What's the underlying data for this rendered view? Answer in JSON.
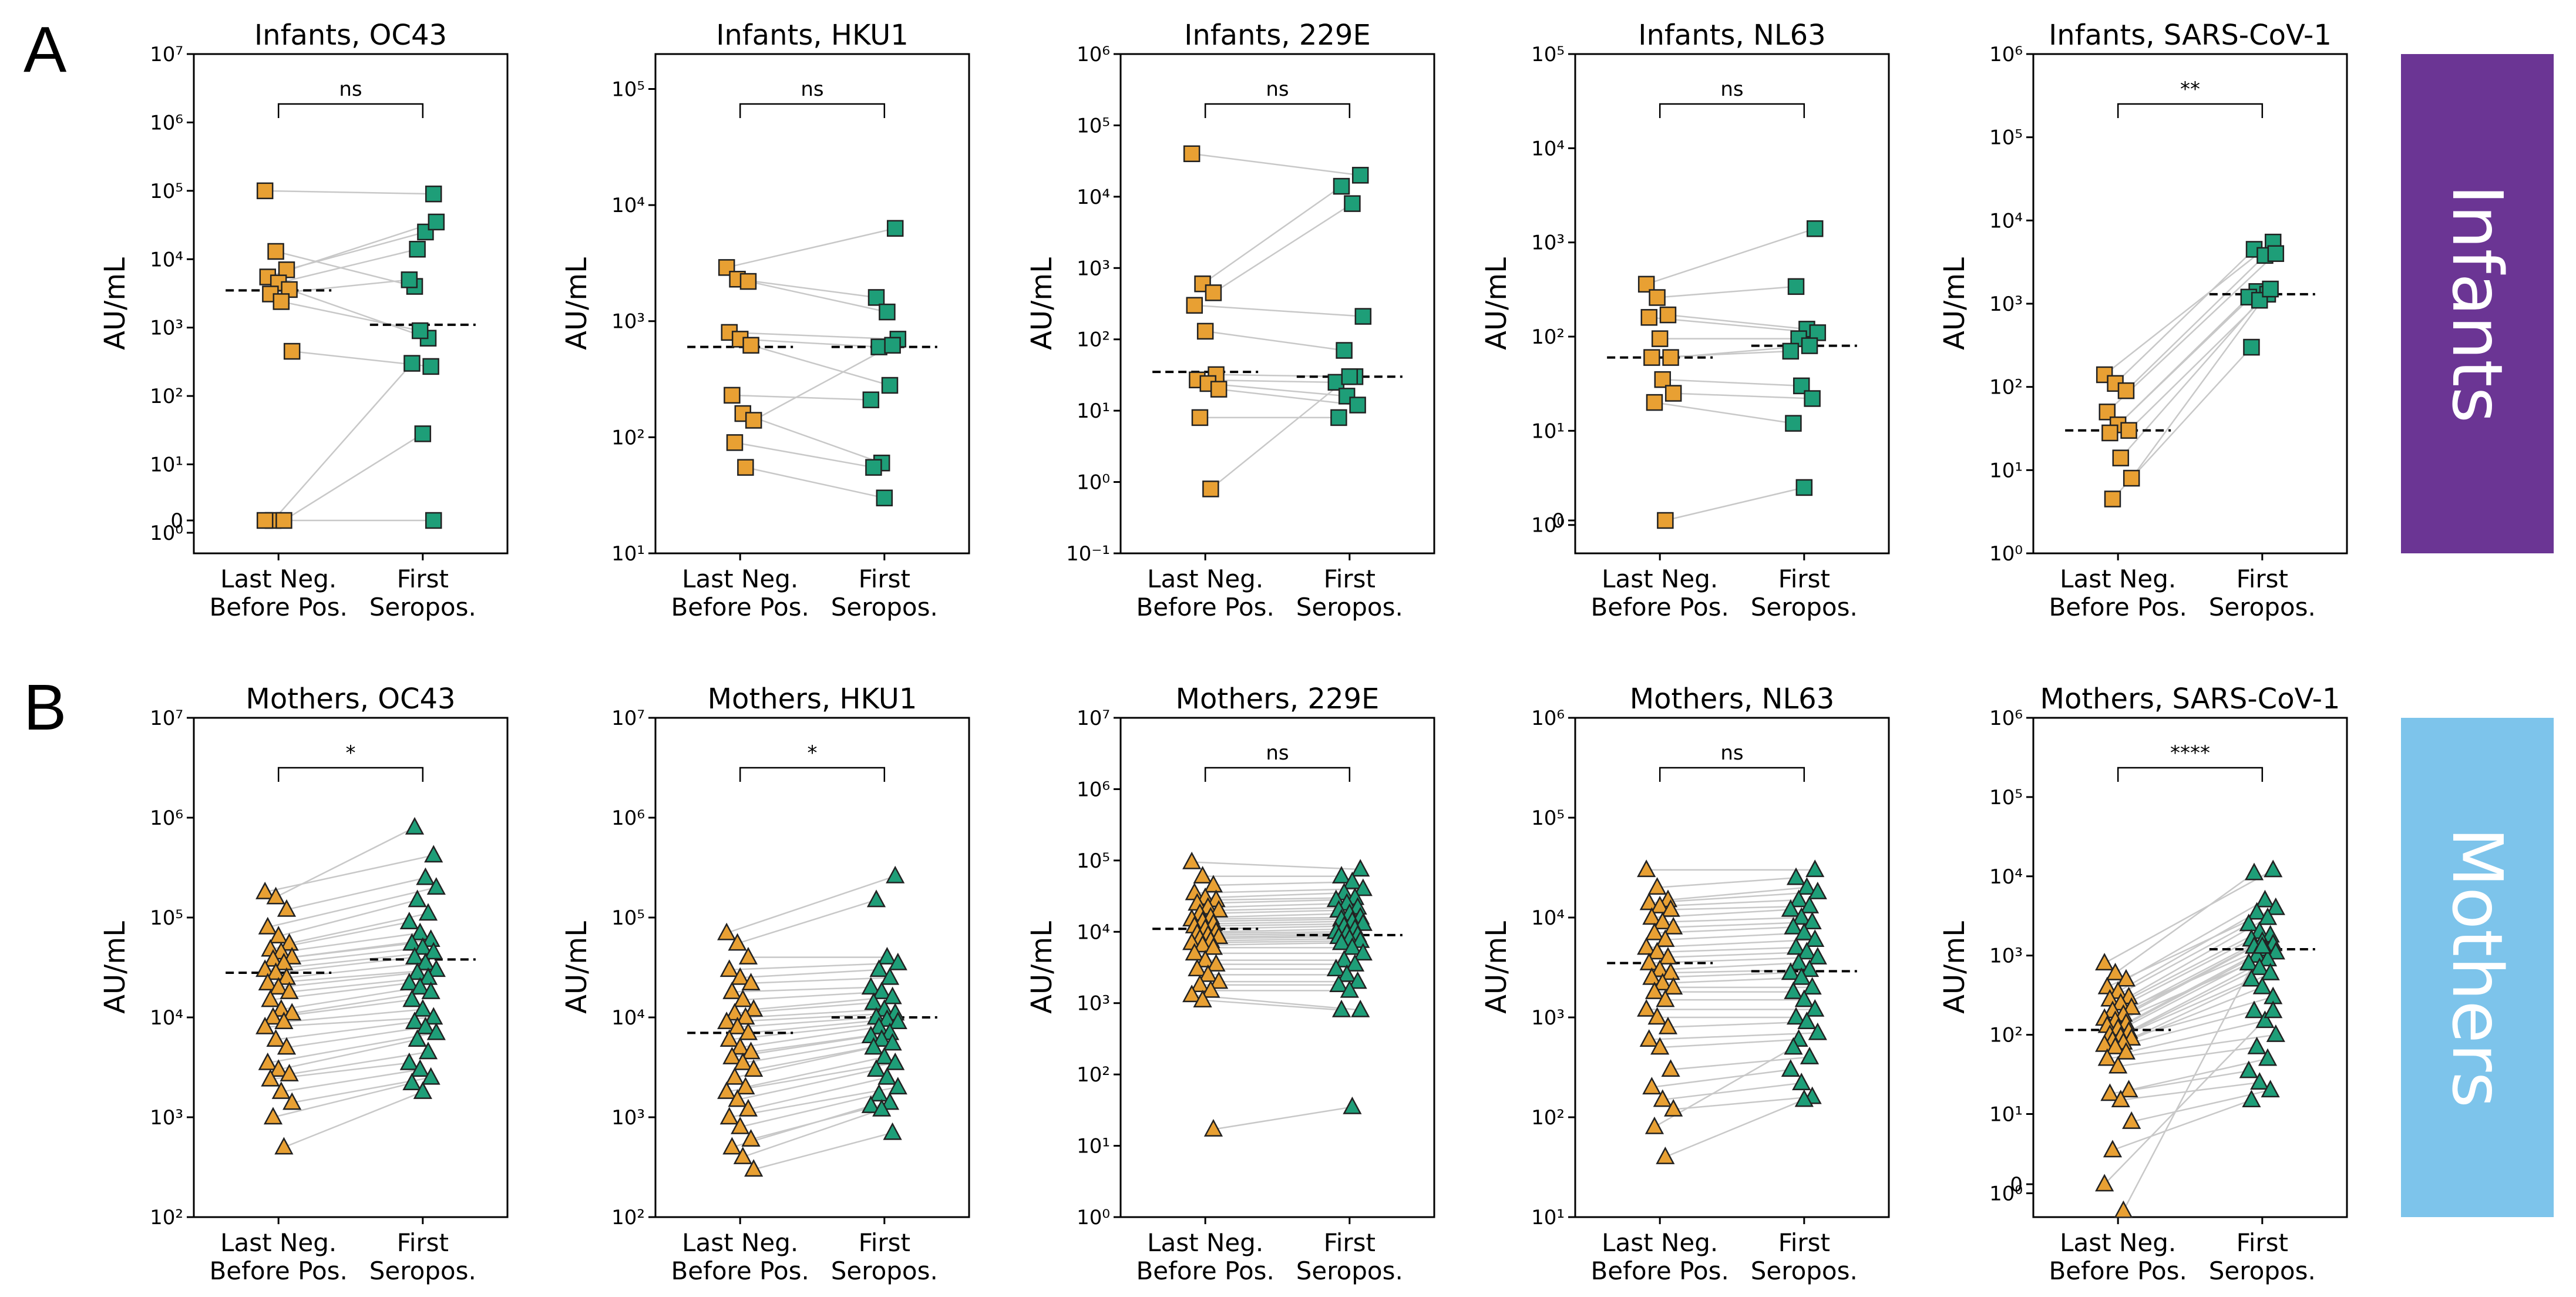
{
  "figure": {
    "panel_labels": [
      "A",
      "B"
    ],
    "row_labels": [
      "Infants",
      "Mothers"
    ],
    "colors": {
      "last_neg": "#E8A033",
      "first_pos": "#1E9E78",
      "infants_band": "#6B3594",
      "mothers_band": "#7DC4EB",
      "pair_line": "#C8C8C8",
      "median": "#000000"
    }
  },
  "chart_data": [
    {
      "type": "scatter",
      "title": "Infants, OC43",
      "ylabel": "AU/mL",
      "row": 0,
      "col": 0,
      "marker": "square",
      "yscale": "log",
      "ylim": [
        0.5,
        10000000
      ],
      "ytick_exps": [
        0,
        1,
        2,
        3,
        4,
        5,
        6,
        7
      ],
      "has_zero": true,
      "categories": [
        "Last Neg.\nBefore Pos.",
        "First\nSeropos."
      ],
      "significance": "ns",
      "medians": [
        3500,
        1100
      ],
      "pairs": [
        [
          100000,
          90000
        ],
        [
          13000,
          4000
        ],
        [
          7000,
          25000
        ],
        [
          5500,
          35000
        ],
        [
          4500,
          14000
        ],
        [
          3600,
          700
        ],
        [
          3100,
          5000
        ],
        [
          2400,
          900
        ],
        [
          450,
          270
        ],
        [
          0,
          300
        ],
        [
          0,
          28
        ],
        [
          0,
          0
        ]
      ]
    },
    {
      "type": "scatter",
      "title": "Infants, HKU1",
      "ylabel": "AU/mL",
      "row": 0,
      "col": 1,
      "marker": "square",
      "yscale": "log",
      "ylim": [
        10,
        200000
      ],
      "ytick_exps": [
        1,
        2,
        3,
        4,
        5
      ],
      "has_zero": false,
      "categories": [
        "Last Neg.\nBefore Pos.",
        "First\nSeropos."
      ],
      "significance": "ns",
      "medians": [
        600,
        600
      ],
      "pairs": [
        [
          2900,
          6300
        ],
        [
          2300,
          1600
        ],
        [
          2200,
          1200
        ],
        [
          800,
          700
        ],
        [
          700,
          600
        ],
        [
          620,
          280
        ],
        [
          230,
          210
        ],
        [
          160,
          60
        ],
        [
          140,
          620
        ],
        [
          90,
          55
        ],
        [
          55,
          30
        ]
      ]
    },
    {
      "type": "scatter",
      "title": "Infants, 229E",
      "ylabel": "AU/mL",
      "row": 0,
      "col": 2,
      "marker": "square",
      "yscale": "log",
      "ylim": [
        0.1,
        1000000
      ],
      "ytick_exps": [
        -1,
        0,
        1,
        2,
        3,
        4,
        5,
        6
      ],
      "has_zero": false,
      "categories": [
        "Last Neg.\nBefore Pos.",
        "First\nSeropos."
      ],
      "significance": "ns",
      "medians": [
        35,
        30
      ],
      "pairs": [
        [
          40000,
          20000
        ],
        [
          600,
          14000
        ],
        [
          450,
          8000
        ],
        [
          300,
          210
        ],
        [
          130,
          70
        ],
        [
          32,
          30
        ],
        [
          27,
          25
        ],
        [
          24,
          16
        ],
        [
          20,
          12
        ],
        [
          8,
          8
        ],
        [
          0.8,
          30
        ]
      ]
    },
    {
      "type": "scatter",
      "title": "Infants, NL63",
      "ylabel": "AU/mL",
      "row": 0,
      "col": 3,
      "marker": "square",
      "yscale": "log",
      "ylim": [
        0.5,
        100000
      ],
      "ytick_exps": [
        0,
        1,
        2,
        3,
        4,
        5
      ],
      "has_zero": true,
      "categories": [
        "Last Neg.\nBefore Pos.",
        "First\nSeropos."
      ],
      "significance": "ns",
      "medians": [
        60,
        80
      ],
      "pairs": [
        [
          360,
          1400
        ],
        [
          260,
          340
        ],
        [
          170,
          120
        ],
        [
          160,
          110
        ],
        [
          95,
          95
        ],
        [
          60,
          80
        ],
        [
          60,
          70
        ],
        [
          35,
          30
        ],
        [
          25,
          22
        ],
        [
          20,
          12
        ],
        [
          0,
          2.5
        ]
      ]
    },
    {
      "type": "scatter",
      "title": "Infants, SARS-CoV-1",
      "ylabel": "AU/mL",
      "row": 0,
      "col": 4,
      "marker": "square",
      "yscale": "log",
      "ylim": [
        1,
        1000000
      ],
      "ytick_exps": [
        0,
        1,
        2,
        3,
        4,
        5,
        6
      ],
      "has_zero": false,
      "categories": [
        "Last Neg.\nBefore Pos.",
        "First\nSeropos."
      ],
      "significance": "**",
      "medians": [
        30,
        1300
      ],
      "pairs": [
        [
          140,
          5500
        ],
        [
          110,
          4500
        ],
        [
          90,
          3800
        ],
        [
          50,
          4000
        ],
        [
          35,
          1400
        ],
        [
          30,
          1300
        ],
        [
          28,
          1200
        ],
        [
          14,
          1100
        ],
        [
          8,
          1500
        ],
        [
          4.5,
          300
        ]
      ]
    },
    {
      "type": "scatter",
      "title": "Mothers, OC43",
      "ylabel": "AU/mL",
      "row": 1,
      "col": 0,
      "marker": "triangle",
      "yscale": "log",
      "ylim": [
        100,
        10000000
      ],
      "ytick_exps": [
        2,
        3,
        4,
        5,
        6,
        7
      ],
      "has_zero": false,
      "categories": [
        "Last Neg.\nBefore Pos.",
        "First\nSeropos."
      ],
      "significance": "*",
      "medians": [
        28000,
        38000
      ],
      "pairs": [
        [
          180000,
          420000
        ],
        [
          160000,
          800000
        ],
        [
          120000,
          250000
        ],
        [
          80000,
          200000
        ],
        [
          65000,
          150000
        ],
        [
          55000,
          110000
        ],
        [
          48000,
          90000
        ],
        [
          45000,
          70000
        ],
        [
          40000,
          60000
        ],
        [
          38000,
          55000
        ],
        [
          35000,
          50000
        ],
        [
          30000,
          45000
        ],
        [
          28000,
          40000
        ],
        [
          25000,
          35000
        ],
        [
          22000,
          30000
        ],
        [
          20000,
          28000
        ],
        [
          18000,
          25000
        ],
        [
          15000,
          22000
        ],
        [
          12000,
          20000
        ],
        [
          11000,
          18000
        ],
        [
          10000,
          15000
        ],
        [
          9000,
          12000
        ],
        [
          8000,
          10000
        ],
        [
          6000,
          9000
        ],
        [
          5000,
          8000
        ],
        [
          3500,
          7000
        ],
        [
          3000,
          6000
        ],
        [
          2700,
          4500
        ],
        [
          2400,
          3500
        ],
        [
          1800,
          3000
        ],
        [
          1400,
          2500
        ],
        [
          1000,
          2200
        ],
        [
          500,
          1800
        ]
      ]
    },
    {
      "type": "scatter",
      "title": "Mothers, HKU1",
      "ylabel": "AU/mL",
      "row": 1,
      "col": 1,
      "marker": "triangle",
      "yscale": "log",
      "ylim": [
        100,
        10000000
      ],
      "ytick_exps": [
        2,
        3,
        4,
        5,
        6,
        7
      ],
      "has_zero": false,
      "categories": [
        "Last Neg.\nBefore Pos.",
        "First\nSeropos."
      ],
      "significance": "*",
      "medians": [
        7000,
        10000
      ],
      "pairs": [
        [
          70000,
          260000
        ],
        [
          55000,
          150000
        ],
        [
          40000,
          40000
        ],
        [
          30000,
          35000
        ],
        [
          25000,
          30000
        ],
        [
          22000,
          25000
        ],
        [
          18000,
          20000
        ],
        [
          15000,
          18000
        ],
        [
          12000,
          16000
        ],
        [
          11000,
          14000
        ],
        [
          10000,
          12000
        ],
        [
          9000,
          11000
        ],
        [
          8000,
          10000
        ],
        [
          7000,
          9500
        ],
        [
          6000,
          9000
        ],
        [
          5000,
          8000
        ],
        [
          4500,
          7000
        ],
        [
          4000,
          6500
        ],
        [
          3500,
          6000
        ],
        [
          3000,
          5500
        ],
        [
          2500,
          5000
        ],
        [
          2000,
          4000
        ],
        [
          1800,
          3500
        ],
        [
          1500,
          3000
        ],
        [
          1200,
          2500
        ],
        [
          1000,
          2000
        ],
        [
          800,
          1700
        ],
        [
          600,
          1400
        ],
        [
          500,
          1300
        ],
        [
          400,
          1200
        ],
        [
          300,
          700
        ]
      ]
    },
    {
      "type": "scatter",
      "title": "Mothers, 229E",
      "ylabel": "AU/mL",
      "row": 1,
      "col": 2,
      "marker": "triangle",
      "yscale": "log",
      "ylim": [
        1,
        10000000
      ],
      "ytick_exps": [
        0,
        1,
        2,
        3,
        4,
        5,
        6,
        7
      ],
      "has_zero": false,
      "categories": [
        "Last Neg.\nBefore Pos.",
        "First\nSeropos."
      ],
      "significance": "ns",
      "medians": [
        11000,
        9000
      ],
      "pairs": [
        [
          95000,
          75000
        ],
        [
          60000,
          60000
        ],
        [
          45000,
          50000
        ],
        [
          35000,
          40000
        ],
        [
          30000,
          35000
        ],
        [
          28000,
          30000
        ],
        [
          25000,
          28000
        ],
        [
          22000,
          25000
        ],
        [
          20000,
          22000
        ],
        [
          18000,
          20000
        ],
        [
          16000,
          18000
        ],
        [
          15000,
          16000
        ],
        [
          14000,
          15000
        ],
        [
          13000,
          14000
        ],
        [
          12000,
          13000
        ],
        [
          11000,
          12000
        ],
        [
          10000,
          11000
        ],
        [
          9500,
          10000
        ],
        [
          9000,
          9500
        ],
        [
          8500,
          9000
        ],
        [
          8000,
          8500
        ],
        [
          7500,
          8000
        ],
        [
          7000,
          7500
        ],
        [
          6500,
          7000
        ],
        [
          6000,
          6000
        ],
        [
          5000,
          5000
        ],
        [
          4000,
          4000
        ],
        [
          3500,
          3500
        ],
        [
          3000,
          3000
        ],
        [
          2500,
          2500
        ],
        [
          2000,
          2000
        ],
        [
          1800,
          1800
        ],
        [
          1500,
          1500
        ],
        [
          1300,
          800
        ],
        [
          1100,
          800
        ],
        [
          17,
          35
        ]
      ]
    },
    {
      "type": "scatter",
      "title": "Mothers, NL63",
      "ylabel": "AU/mL",
      "row": 1,
      "col": 3,
      "marker": "triangle",
      "yscale": "log",
      "ylim": [
        10,
        1000000
      ],
      "ytick_exps": [
        1,
        2,
        3,
        4,
        5,
        6
      ],
      "has_zero": false,
      "categories": [
        "Last Neg.\nBefore Pos.",
        "First\nSeropos."
      ],
      "significance": "ns",
      "medians": [
        3500,
        2900
      ],
      "pairs": [
        [
          30000,
          30000
        ],
        [
          20000,
          25000
        ],
        [
          15000,
          20000
        ],
        [
          14000,
          18000
        ],
        [
          13000,
          15000
        ],
        [
          12000,
          13000
        ],
        [
          10000,
          12000
        ],
        [
          9000,
          10000
        ],
        [
          8000,
          9000
        ],
        [
          7000,
          8000
        ],
        [
          6000,
          7000
        ],
        [
          5000,
          6000
        ],
        [
          4500,
          5000
        ],
        [
          4000,
          4500
        ],
        [
          3500,
          4000
        ],
        [
          3000,
          3500
        ],
        [
          2800,
          3000
        ],
        [
          2500,
          2800
        ],
        [
          2200,
          2500
        ],
        [
          2000,
          2000
        ],
        [
          1800,
          1800
        ],
        [
          1500,
          1500
        ],
        [
          1200,
          1200
        ],
        [
          1000,
          1000
        ],
        [
          800,
          900
        ],
        [
          600,
          700
        ],
        [
          500,
          600
        ],
        [
          300,
          400
        ],
        [
          200,
          300
        ],
        [
          150,
          220
        ],
        [
          120,
          160
        ],
        [
          80,
          500
        ],
        [
          40,
          150
        ]
      ]
    },
    {
      "type": "scatter",
      "title": "Mothers, SARS-CoV-1",
      "ylabel": "AU/mL",
      "row": 1,
      "col": 4,
      "marker": "triangle",
      "yscale": "log",
      "ylim": [
        0.5,
        1000000
      ],
      "ytick_exps": [
        0,
        1,
        2,
        3,
        4,
        5,
        6
      ],
      "has_zero": true,
      "categories": [
        "Last Neg.\nBefore Pos.",
        "First\nSeropos."
      ],
      "significance": "****",
      "medians": [
        115,
        1200
      ],
      "pairs": [
        [
          800,
          12000
        ],
        [
          600,
          11000
        ],
        [
          500,
          5000
        ],
        [
          400,
          4000
        ],
        [
          350,
          3500
        ],
        [
          300,
          3000
        ],
        [
          280,
          2500
        ],
        [
          250,
          2000
        ],
        [
          220,
          1800
        ],
        [
          200,
          1600
        ],
        [
          180,
          1500
        ],
        [
          160,
          1400
        ],
        [
          150,
          1300
        ],
        [
          140,
          1200
        ],
        [
          130,
          1100
        ],
        [
          120,
          1000
        ],
        [
          110,
          900
        ],
        [
          100,
          800
        ],
        [
          95,
          700
        ],
        [
          90,
          600
        ],
        [
          85,
          500
        ],
        [
          80,
          400
        ],
        [
          75,
          300
        ],
        [
          70,
          200
        ],
        [
          60,
          150
        ],
        [
          50,
          100
        ],
        [
          40,
          70
        ],
        [
          20,
          50
        ],
        [
          18,
          35
        ],
        [
          15,
          25
        ],
        [
          8,
          20
        ],
        [
          3.5,
          15
        ],
        [
          0.6,
          1300
        ],
        [
          0,
          200
        ]
      ]
    }
  ]
}
